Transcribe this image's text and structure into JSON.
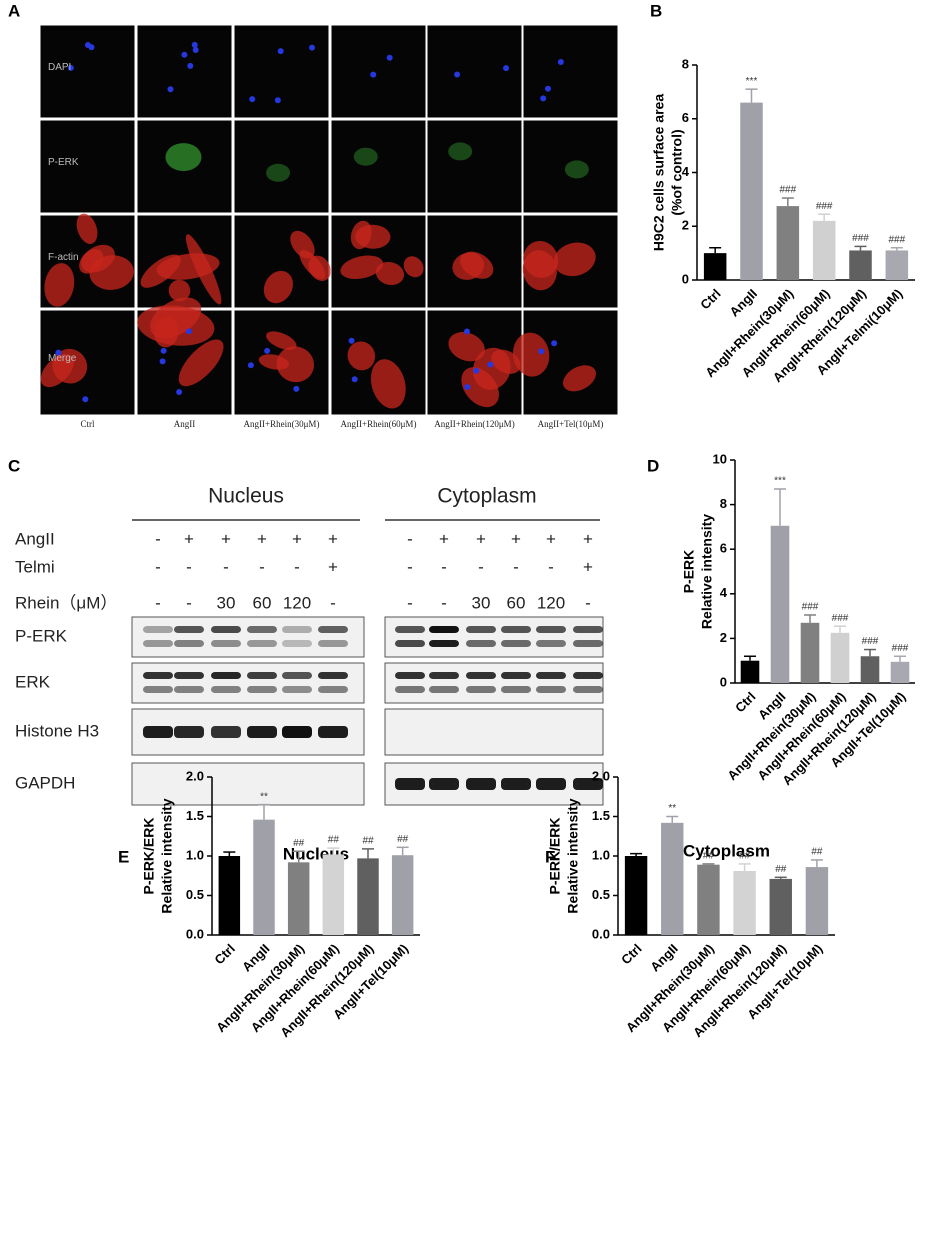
{
  "panel_labels": [
    "A",
    "B",
    "C",
    "D",
    "E",
    "F"
  ],
  "panel_a": {
    "row_labels": [
      "DAPI",
      "P-ERK",
      "F-actin",
      "Merge"
    ],
    "column_labels": [
      "Ctrl",
      "AngII",
      "AngII+Rhein(30μM)",
      "AngII+Rhein(60μM)",
      "AngII+Rhein(120μM)",
      "AngII+Tel(10μM)"
    ]
  },
  "panel_c": {
    "groups": [
      "Nucleus",
      "Cytoplasm"
    ],
    "condition_rows": [
      {
        "label": "AngII",
        "nucleus": [
          "-",
          "+",
          "+",
          "+",
          "+",
          "+"
        ],
        "cytoplasm": [
          "-",
          "+",
          "+",
          "+",
          "+",
          "+"
        ]
      },
      {
        "label": "Telmi",
        "nucleus": [
          "-",
          "-",
          "-",
          "-",
          "-",
          "+"
        ],
        "cytoplasm": [
          "-",
          "-",
          "-",
          "-",
          "-",
          "+"
        ]
      },
      {
        "label": "Rhein（μM）",
        "nucleus": [
          "-",
          "-",
          "30",
          "60",
          "120",
          "-"
        ],
        "cytoplasm": [
          "-",
          "-",
          "30",
          "60",
          "120",
          "-"
        ]
      }
    ],
    "blots": [
      "P-ERK",
      "ERK",
      "Histone H3",
      "GAPDH"
    ]
  },
  "chart_data": [
    {
      "type": "bar",
      "ylabel": [
        "H9C2 cells surface area",
        "(%of control)"
      ],
      "categories": [
        "Ctrl",
        "AngII",
        "AngII+Rhein(30μM)",
        "AngII+Rhein(60μM)",
        "AngII+Rhein(120μM)",
        "AngII+Telmi(10μM)"
      ],
      "values": [
        1.0,
        6.6,
        2.75,
        2.2,
        1.1,
        1.1
      ],
      "errors": [
        0.2,
        0.5,
        0.3,
        0.25,
        0.15,
        0.1
      ],
      "annotations": [
        null,
        "***",
        "###",
        "###",
        "###",
        "###"
      ],
      "colors": [
        "#000000",
        "#a0a0a8",
        "#808080",
        "#d0d0d0",
        "#606060",
        "#a8a8b0"
      ],
      "ylim": [
        0,
        8
      ],
      "yticks": [
        0,
        2,
        4,
        6,
        8
      ]
    },
    {
      "type": "bar",
      "ylabel": [
        "P-ERK",
        "Relative intensity"
      ],
      "categories": [
        "Ctrl",
        "AngII",
        "AngII+Rhein(30μM)",
        "AngII+Rhein(60μM)",
        "AngII+Rhein(120μM)",
        "AngII+Tel(10μM)"
      ],
      "values": [
        1.0,
        7.05,
        2.7,
        2.25,
        1.2,
        0.95
      ],
      "errors": [
        0.2,
        1.65,
        0.35,
        0.3,
        0.3,
        0.25
      ],
      "annotations": [
        null,
        "***",
        "###",
        "###",
        "###",
        "###"
      ],
      "colors": [
        "#000000",
        "#a0a0a8",
        "#808080",
        "#d0d0d0",
        "#606060",
        "#a8a8b0"
      ],
      "ylim": [
        0,
        10
      ],
      "yticks": [
        0,
        2,
        4,
        6,
        8,
        10
      ]
    },
    {
      "type": "bar",
      "title": "Nucleus",
      "ylabel": [
        "P-ERK/ERK",
        "Relative intensity"
      ],
      "categories": [
        "Ctrl",
        "AngII",
        "AngII+Rhein(30μM)",
        "AngII+Rhein(60μM)",
        "AngII+Rhein(120μM)",
        "AngII+Tel(10μM)"
      ],
      "values": [
        1.0,
        1.46,
        0.92,
        1.02,
        0.97,
        1.01
      ],
      "errors": [
        0.05,
        0.19,
        0.14,
        0.08,
        0.12,
        0.1
      ],
      "annotations": [
        null,
        "**",
        "##",
        "##",
        "##",
        "##"
      ],
      "colors": [
        "#000000",
        "#a0a0a8",
        "#808080",
        "#d3d3d3",
        "#606060",
        "#a0a0a8"
      ],
      "ylim": [
        0,
        2
      ],
      "yticks": [
        {
          "value": 0,
          "label": "0.0"
        },
        {
          "value": 0.5,
          "label": "0.5"
        },
        {
          "value": 1,
          "label": "1.0"
        },
        {
          "value": 1.5,
          "label": "1.5"
        },
        {
          "value": 2,
          "label": "2.0"
        }
      ]
    },
    {
      "type": "bar",
      "title": "Cytoplasm",
      "ylabel": [
        "P-ERK/ERK",
        "Relative intensity"
      ],
      "categories": [
        "Ctrl",
        "AngII",
        "AngII+Rhein(30μM)",
        "AngII+Rhein(60μM)",
        "AngII+Rhein(120μM)",
        "AngII+Tel(10μM)"
      ],
      "values": [
        1.0,
        1.42,
        0.89,
        0.81,
        0.71,
        0.86
      ],
      "errors": [
        0.03,
        0.08,
        0.01,
        0.09,
        0.02,
        0.09
      ],
      "annotations": [
        null,
        "**",
        "##",
        "##",
        "##",
        "##"
      ],
      "colors": [
        "#000000",
        "#a0a0a8",
        "#808080",
        "#d3d3d3",
        "#606060",
        "#a0a0a8"
      ],
      "ylim": [
        0,
        2
      ],
      "yticks": [
        {
          "value": 0,
          "label": "0.0"
        },
        {
          "value": 0.5,
          "label": "0.5"
        },
        {
          "value": 1,
          "label": "1.0"
        },
        {
          "value": 1.5,
          "label": "1.5"
        },
        {
          "value": 2,
          "label": "2.0"
        }
      ]
    }
  ]
}
